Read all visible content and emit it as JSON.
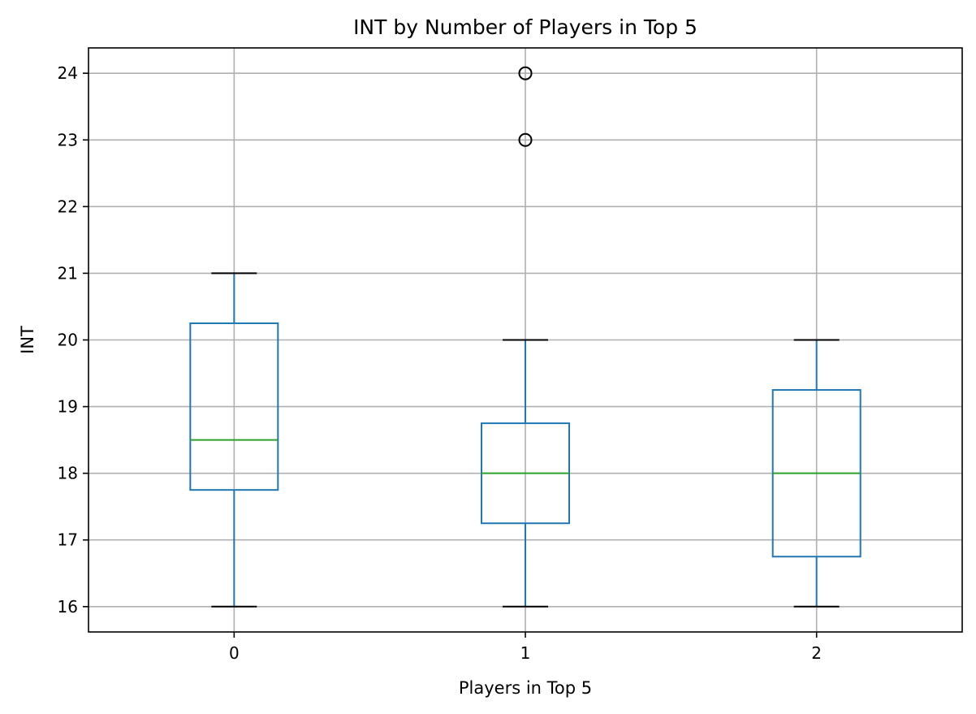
{
  "chart_data": {
    "type": "box",
    "title": "INT by Number of Players in Top 5",
    "xlabel": "Players in Top 5",
    "ylabel": "INT",
    "categories": [
      "0",
      "1",
      "2"
    ],
    "ylim": [
      15.62,
      24.38
    ],
    "yticks": [
      16,
      17,
      18,
      19,
      20,
      21,
      22,
      23,
      24
    ],
    "grid": true,
    "boxes": [
      {
        "category": "0",
        "whisker_low": 16,
        "q1": 17.75,
        "median": 18.5,
        "q3": 20.25,
        "whisker_high": 21,
        "outliers": []
      },
      {
        "category": "1",
        "whisker_low": 16,
        "q1": 17.25,
        "median": 18.0,
        "q3": 18.75,
        "whisker_high": 20,
        "outliers": [
          23,
          24
        ]
      },
      {
        "category": "2",
        "whisker_low": 16,
        "q1": 16.75,
        "median": 18.0,
        "q3": 19.25,
        "whisker_high": 20,
        "outliers": []
      }
    ],
    "colors": {
      "box": "#1f77b4",
      "median": "#2ca02c",
      "whisker_cap": "#000000",
      "grid": "#b0b0b0",
      "axes": "#000000"
    }
  }
}
